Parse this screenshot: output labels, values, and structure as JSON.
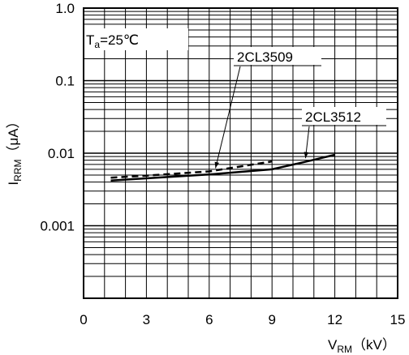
{
  "chart_data": {
    "type": "line",
    "x_scale": "linear",
    "y_scale": "log",
    "xlim": [
      0,
      15
    ],
    "ylim": [
      0.0001,
      1.0
    ],
    "x_ticks": [
      0,
      3,
      6,
      9,
      12,
      15
    ],
    "x_tick_labels": [
      "0",
      "3",
      "6",
      "9",
      "12",
      "15"
    ],
    "y_tick_labels": [
      "1.0",
      "0.1",
      "0.01",
      "0.001"
    ],
    "y_tick_values": [
      1.0,
      0.1,
      0.01,
      0.001
    ],
    "xlabel": {
      "main": "V",
      "sub": "RM",
      "unit": "（kV）"
    },
    "ylabel": {
      "main": "I",
      "sub": "RRM",
      "unit": "（μA）"
    },
    "condition": {
      "main": "T",
      "sub": "a",
      "rest": "=25℃"
    },
    "grid": true,
    "series": [
      {
        "name": "2CL3509",
        "style": "dashed",
        "x": [
          1.3,
          3,
          6,
          9
        ],
        "y": [
          0.0046,
          0.0049,
          0.0056,
          0.0077
        ]
      },
      {
        "name": "2CL3512",
        "style": "solid",
        "x": [
          1.3,
          3,
          6,
          9,
          10.5,
          12
        ],
        "y": [
          0.0042,
          0.0045,
          0.0051,
          0.006,
          0.0075,
          0.0095
        ]
      }
    ],
    "annotations": [
      {
        "text": "2CL3509",
        "points_to": {
          "x": 6.3,
          "y": 0.0056
        }
      },
      {
        "text": "2CL3512",
        "points_to": {
          "x": 10.6,
          "y": 0.0077
        }
      }
    ]
  }
}
